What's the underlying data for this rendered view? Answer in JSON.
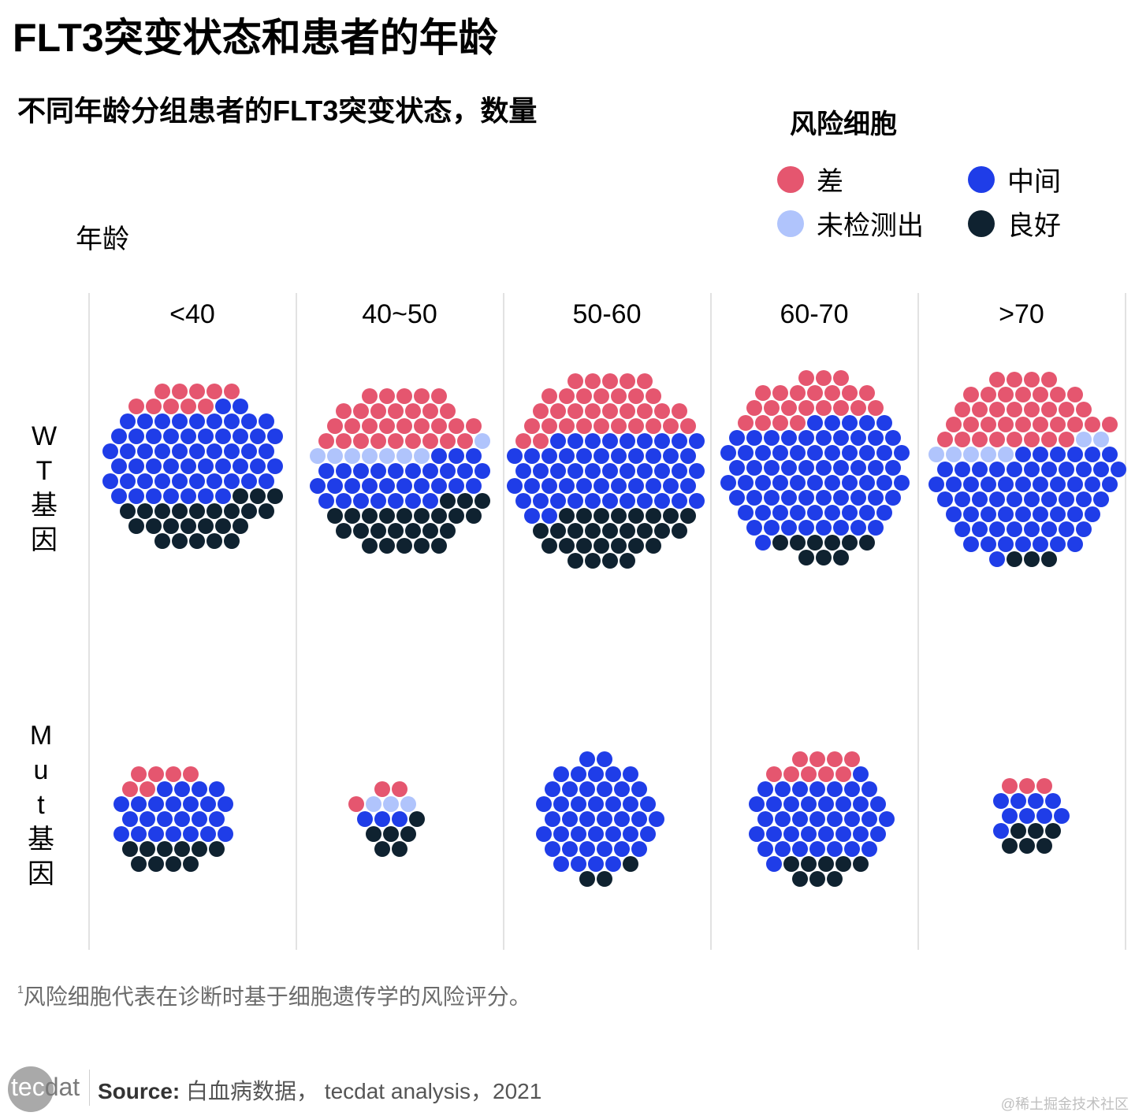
{
  "header": {
    "title": "FLT3突变状态和患者的年龄",
    "subtitle": "不同年龄分组患者的FLT3突变状态，数量"
  },
  "legend": {
    "title": "风险细胞",
    "items": [
      {
        "key": "poor",
        "label": "差",
        "color": "#e5566f"
      },
      {
        "key": "intermediate",
        "label": "中间",
        "color": "#1f3de8"
      },
      {
        "key": "not_detected",
        "label": "未检测出",
        "color": "#b0c4fc"
      },
      {
        "key": "good",
        "label": "良好",
        "color": "#0f2230"
      }
    ]
  },
  "axis": {
    "column_axis_label": "年龄",
    "row_labels": [
      {
        "key": "wt",
        "chars": [
          "W",
          "T",
          "基",
          "因"
        ]
      },
      {
        "key": "mut",
        "chars": [
          "M",
          "u",
          "t",
          "基",
          "因"
        ]
      }
    ]
  },
  "footnote": {
    "marker": "1",
    "text": "风险细胞代表在诊断时基于细胞遗传学的风险评分。"
  },
  "source": {
    "label": "Source:",
    "text": "白血病数据， tecdat analysis，2021"
  },
  "logo": {
    "part1": "tec",
    "part2": "dat"
  },
  "watermark": "@稀土掘金技术社区",
  "chart_data": {
    "type": "packed-dot-matrix",
    "title": "FLT3突变状态和患者的年龄",
    "subtitle": "不同年龄分组患者的FLT3突变状态，数量",
    "categories": [
      "<40",
      "40~50",
      "50-60",
      "60-70",
      ">70"
    ],
    "rows": [
      "WT基因",
      "Mut基因"
    ],
    "legend_position": "top-right",
    "series_order": [
      "差",
      "未检测出",
      "中间",
      "良好"
    ],
    "data": {
      "WT基因": {
        "<40": {
          "差": 10,
          "未检测出": 0,
          "中间": 58,
          "良好": 24
        },
        "40~50": {
          "差": 30,
          "未检测出": 8,
          "中间": 30,
          "良好": 24
        },
        "50-60": {
          "差": 33,
          "未检测出": 0,
          "中间": 55,
          "良好": 28
        },
        "60-70": {
          "差": 22,
          "未检测出": 0,
          "中间": 75,
          "良好": 9
        },
        ">70": {
          "差": 37,
          "未检测出": 7,
          "中间": 63,
          "良好": 3
        }
      },
      "Mut基因": {
        "<40": {
          "差": 6,
          "未检测出": 0,
          "中间": 24,
          "良好": 10
        },
        "40~50": {
          "差": 3,
          "未检测出": 3,
          "中间": 3,
          "良好": 6
        },
        "50-60": {
          "差": 0,
          "未检测出": 0,
          "中间": 44,
          "良好": 3
        },
        "60-70": {
          "差": 9,
          "未检测出": 0,
          "中间": 40,
          "良好": 8
        },
        ">70": {
          "差": 3,
          "未检测出": 0,
          "中间": 9,
          "良好": 6
        }
      }
    }
  }
}
